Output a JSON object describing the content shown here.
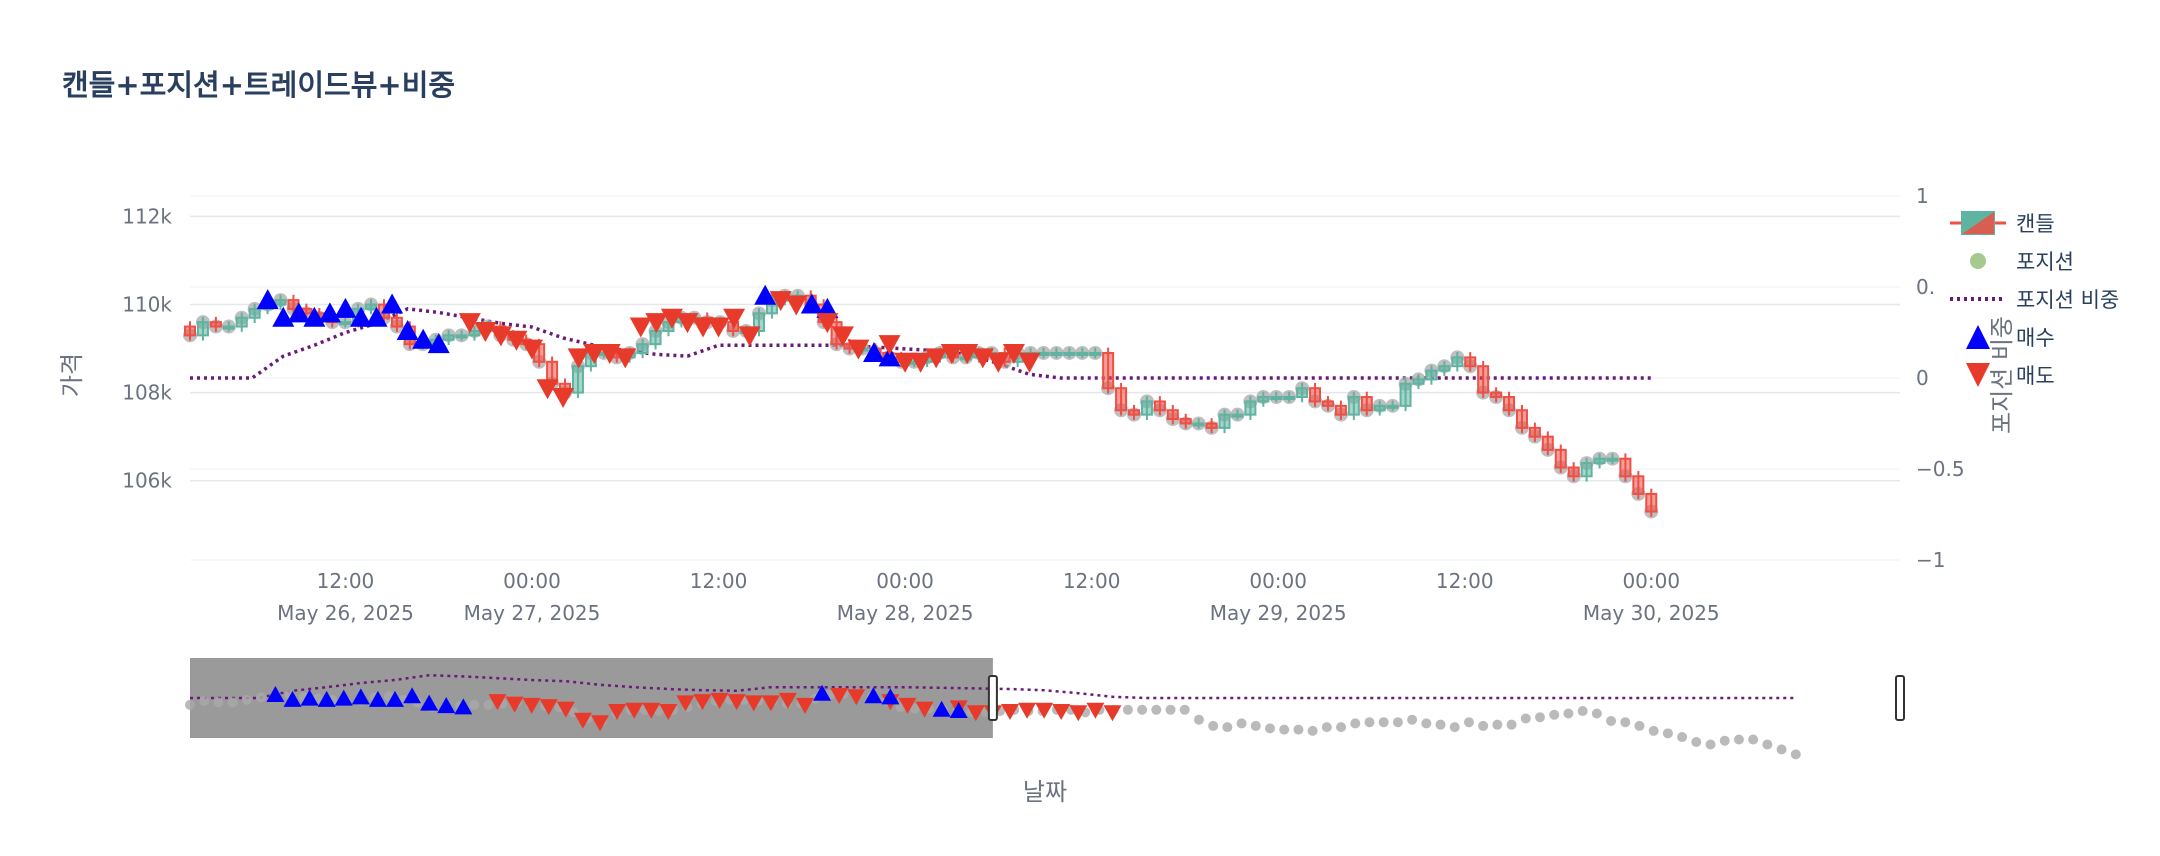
{
  "title": "캔들+포지션+트레이드뷰+비중",
  "legend": {
    "candle": "캔들",
    "position": "포지션",
    "weight": "포지션 비중",
    "buy": "매수",
    "sell": "매도"
  },
  "colors": {
    "up": "#5fb3a1",
    "down": "#ef4f44",
    "buy": "#0000ff",
    "sell": "#e83a2a",
    "position": "#a9a9a9",
    "position_legend": "#a6c98e",
    "weight_line": "#6a1b7a",
    "rangeslider_mask": "#9a9a9a"
  },
  "chart_data": {
    "type": "candlestick",
    "xlabel": "날짜",
    "ylabel": "가격",
    "y2label": "포지션 비중",
    "yticks": [
      "112k",
      "110k",
      "108k",
      "106k"
    ],
    "ytick_values": [
      112000,
      110000,
      108000,
      106000
    ],
    "ylim": [
      104200,
      112600
    ],
    "y2ticks": [
      "1",
      "0.",
      "0",
      "−0.5",
      "−1"
    ],
    "y2tick_values": [
      1,
      0.5,
      0,
      -0.5,
      -1
    ],
    "y2lim": [
      -1,
      1
    ],
    "xrange_hours": [
      0,
      110
    ],
    "x_start": "2025-05-26 02:00",
    "xticks": [
      {
        "time": "12:00",
        "date": "May 26, 2025",
        "hours": 10
      },
      {
        "time": "00:00",
        "date": "May 27, 2025",
        "hours": 22
      },
      {
        "time": "12:00",
        "date": "",
        "hours": 34
      },
      {
        "time": "00:00",
        "date": "May 28, 2025",
        "hours": 46
      },
      {
        "time": "12:00",
        "date": "",
        "hours": 58
      },
      {
        "time": "00:00",
        "date": "May 29, 2025",
        "hours": 70
      },
      {
        "time": "12:00",
        "date": "",
        "hours": 82
      },
      {
        "time": "00:00",
        "date": "May 30, 2025",
        "hours": 94
      }
    ],
    "closes": [
      109300,
      109600,
      109500,
      109500,
      109700,
      109900,
      110000,
      110100,
      109900,
      109800,
      109700,
      109600,
      109600,
      109900,
      110000,
      109700,
      109500,
      109100,
      109100,
      109200,
      109300,
      109300,
      109400,
      109500,
      109300,
      109200,
      109100,
      108700,
      108200,
      108000,
      108600,
      108900,
      108900,
      108800,
      108900,
      109100,
      109400,
      109600,
      109700,
      109700,
      109600,
      109600,
      109400,
      109400,
      109800,
      110100,
      110200,
      110200,
      110000,
      109600,
      109100,
      109000,
      109000,
      108900,
      108800,
      108700,
      108700,
      108800,
      108900,
      108800,
      108800,
      108900,
      108900,
      108700,
      108900,
      108900,
      108900,
      108900,
      108900,
      108900,
      108900,
      108100,
      107600,
      107500,
      107800,
      107600,
      107400,
      107300,
      107300,
      107200,
      107500,
      107500,
      107800,
      107900,
      107900,
      107900,
      108100,
      107800,
      107700,
      107500,
      107900,
      107600,
      107700,
      107700,
      108200,
      108300,
      108500,
      108600,
      108800,
      108600,
      108000,
      107900,
      107600,
      107200,
      107000,
      106700,
      106300,
      106100,
      106400,
      106500,
      106500,
      106100,
      105700,
      105300
    ],
    "weight": [
      [
        0,
        0
      ],
      [
        4,
        0
      ],
      [
        6,
        0.12
      ],
      [
        8,
        0.18
      ],
      [
        10,
        0.25
      ],
      [
        12,
        0.3
      ],
      [
        14,
        0.38
      ],
      [
        16,
        0.36
      ],
      [
        18,
        0.33
      ],
      [
        20,
        0.3
      ],
      [
        22,
        0.28
      ],
      [
        24,
        0.22
      ],
      [
        26,
        0.18
      ],
      [
        28,
        0.15
      ],
      [
        30,
        0.13
      ],
      [
        32,
        0.12
      ],
      [
        34,
        0.18
      ],
      [
        36,
        0.18
      ],
      [
        38,
        0.18
      ],
      [
        40,
        0.18
      ],
      [
        42,
        0.18
      ],
      [
        44,
        0.17
      ],
      [
        46,
        0.16
      ],
      [
        48,
        0.15
      ],
      [
        50,
        0.13
      ],
      [
        52,
        0.08
      ],
      [
        54,
        0.02
      ],
      [
        56,
        0
      ],
      [
        60,
        0
      ],
      [
        70,
        0
      ],
      [
        80,
        0
      ],
      [
        94,
        0
      ]
    ],
    "buys": [
      [
        5,
        110100
      ],
      [
        6,
        109700
      ],
      [
        7,
        109800
      ],
      [
        8,
        109700
      ],
      [
        9,
        109800
      ],
      [
        10,
        109900
      ],
      [
        11,
        109700
      ],
      [
        12,
        109700
      ],
      [
        13,
        110000
      ],
      [
        14,
        109400
      ],
      [
        15,
        109200
      ],
      [
        16,
        109100
      ],
      [
        37,
        110200
      ],
      [
        40,
        110000
      ],
      [
        41,
        109900
      ],
      [
        44,
        108900
      ],
      [
        45,
        108800
      ]
    ],
    "sells": [
      [
        18,
        109600
      ],
      [
        19,
        109400
      ],
      [
        20,
        109300
      ],
      [
        21,
        109200
      ],
      [
        22,
        109000
      ],
      [
        23,
        108100
      ],
      [
        24,
        107900
      ],
      [
        25,
        108800
      ],
      [
        26,
        108900
      ],
      [
        27,
        108900
      ],
      [
        28,
        108800
      ],
      [
        29,
        109500
      ],
      [
        30,
        109600
      ],
      [
        31,
        109700
      ],
      [
        32,
        109600
      ],
      [
        33,
        109500
      ],
      [
        34,
        109500
      ],
      [
        35,
        109700
      ],
      [
        36,
        109300
      ],
      [
        38,
        110100
      ],
      [
        39,
        110000
      ],
      [
        41,
        109600
      ],
      [
        42,
        109300
      ],
      [
        43,
        109000
      ],
      [
        45,
        109100
      ],
      [
        46,
        108700
      ],
      [
        47,
        108700
      ],
      [
        48,
        108800
      ],
      [
        49,
        108900
      ],
      [
        50,
        108900
      ],
      [
        51,
        108800
      ],
      [
        52,
        108700
      ],
      [
        53,
        108900
      ],
      [
        54,
        108700
      ]
    ],
    "rangeslider": {
      "selected_hours": [
        0,
        47
      ]
    }
  }
}
